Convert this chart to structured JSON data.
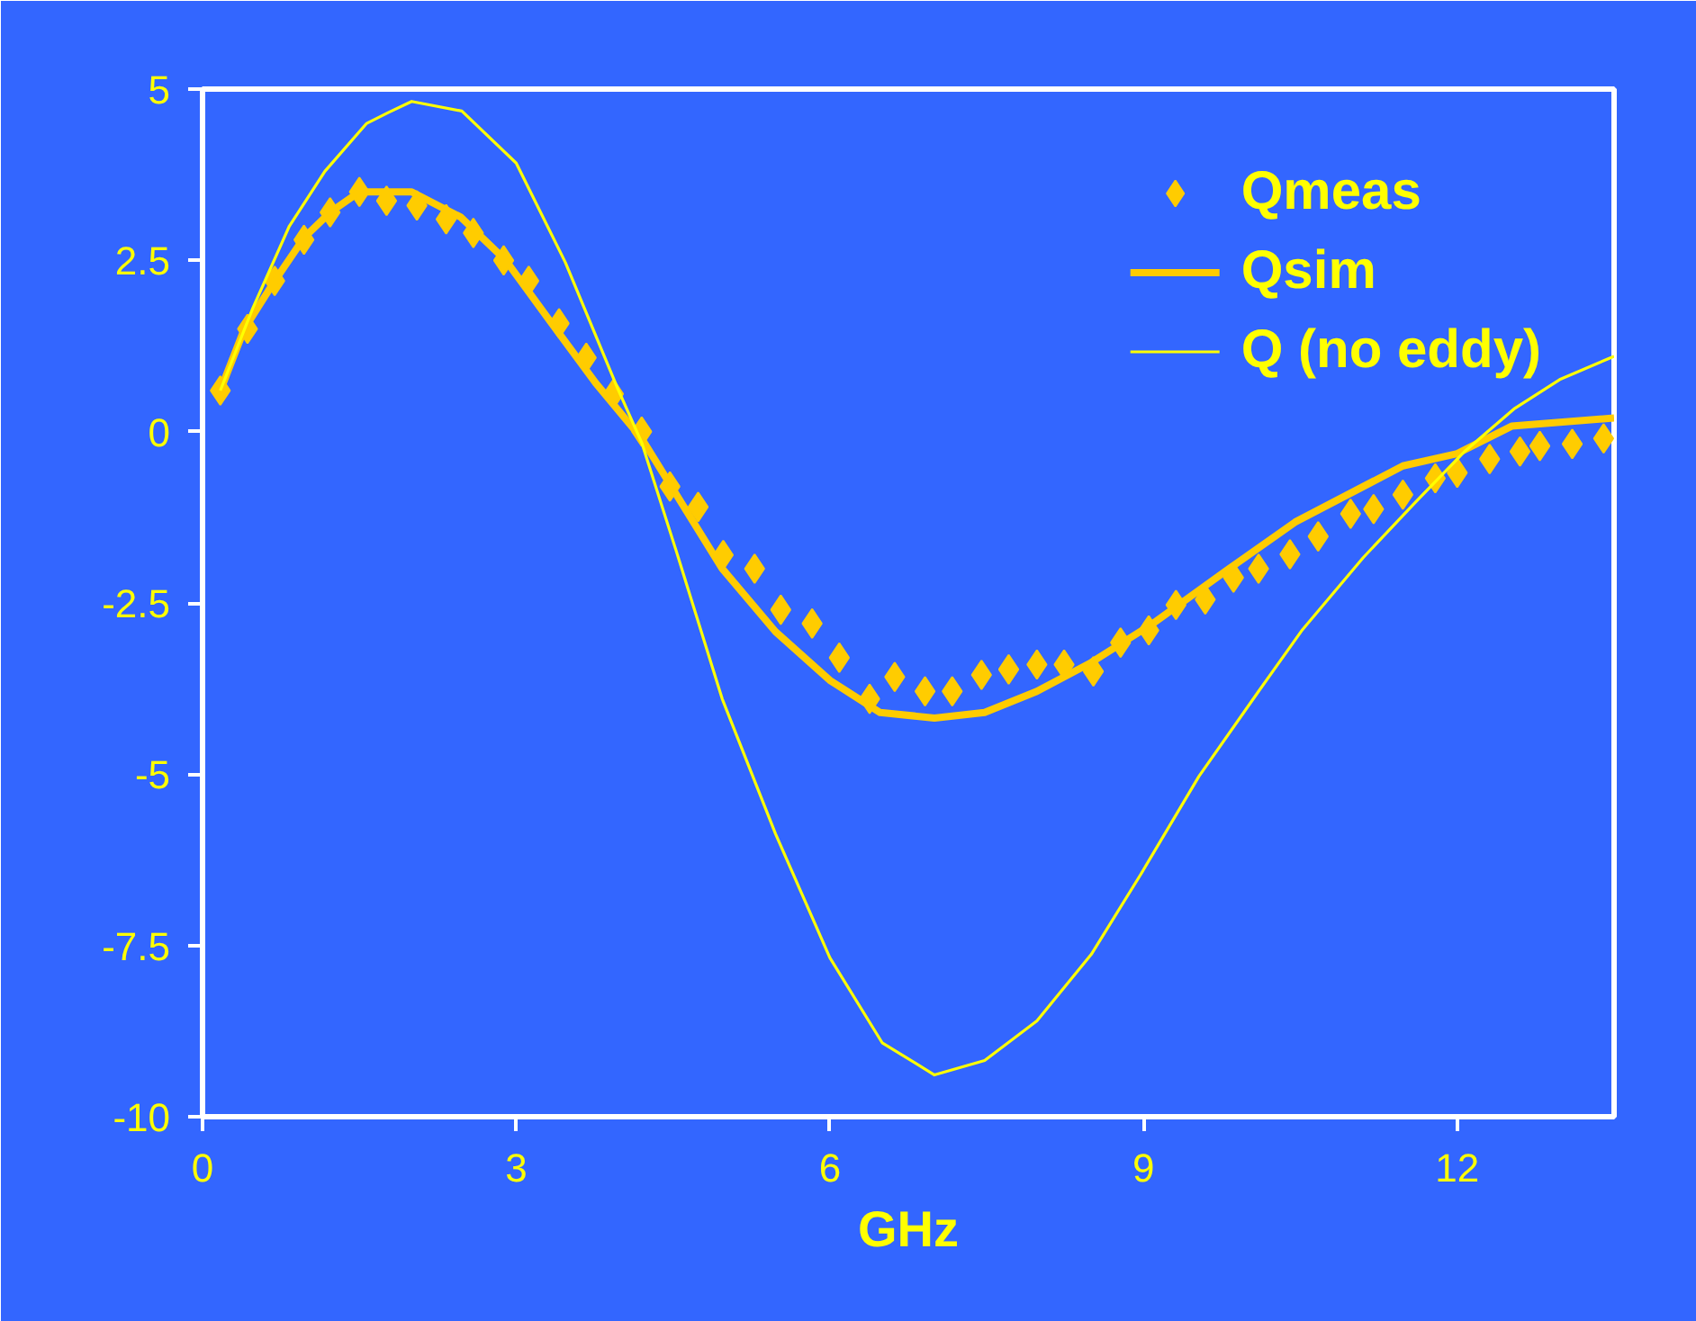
{
  "chart_data": {
    "type": "line",
    "xlabel": "GHz",
    "xlim": [
      0,
      13.5
    ],
    "xticks": [
      0,
      3,
      6,
      9,
      12
    ],
    "ylim": [
      -10,
      5
    ],
    "yticks": [
      5,
      2.5,
      0,
      -2.5,
      -5,
      -7.5,
      -10
    ],
    "grid": false,
    "legend": "top right",
    "series": [
      {
        "name": "Qmeas",
        "type": "scatter",
        "marker": "diamond",
        "color": "#ffcc00",
        "x": [
          0.17,
          0.43,
          0.69,
          0.97,
          1.22,
          1.5,
          1.76,
          2.05,
          2.33,
          2.59,
          2.88,
          3.12,
          3.41,
          3.67,
          3.93,
          4.2,
          4.47,
          4.74,
          4.98,
          5.28,
          5.53,
          5.83,
          6.09,
          6.38,
          6.62,
          6.91,
          7.17,
          7.45,
          7.71,
          7.98,
          8.24,
          8.52,
          8.78,
          9.05,
          9.31,
          9.59,
          9.86,
          10.1,
          10.4,
          10.67,
          10.98,
          11.2,
          11.48,
          11.79,
          12.0,
          12.31,
          12.6,
          12.79,
          13.1,
          13.4
        ],
        "values": [
          0.6,
          1.5,
          2.2,
          2.8,
          3.2,
          3.5,
          3.37,
          3.3,
          3.1,
          2.9,
          2.5,
          2.2,
          1.58,
          1.08,
          0.55,
          0.0,
          -0.8,
          -1.1,
          -1.8,
          -2.0,
          -2.6,
          -2.8,
          -3.3,
          -3.9,
          -3.58,
          -3.79,
          -3.79,
          -3.55,
          -3.47,
          -3.4,
          -3.4,
          -3.5,
          -3.08,
          -2.9,
          -2.53,
          -2.45,
          -2.13,
          -2.0,
          -1.79,
          -1.53,
          -1.2,
          -1.13,
          -0.92,
          -0.68,
          -0.6,
          -0.4,
          -0.29,
          -0.21,
          -0.18,
          -0.1
        ]
      },
      {
        "name": "Qsim",
        "line_style": "solid",
        "color": "#ffcc00",
        "x": [
          0.17,
          0.4,
          0.69,
          0.97,
          1.22,
          1.5,
          2.0,
          2.47,
          2.9,
          3.33,
          3.76,
          4.2,
          4.97,
          5.48,
          6.0,
          6.48,
          7.0,
          7.48,
          7.98,
          8.5,
          9.1,
          9.79,
          10.45,
          11.48,
          12.0,
          12.52,
          13.5
        ],
        "values": [
          0.6,
          1.5,
          2.2,
          2.83,
          3.2,
          3.5,
          3.5,
          3.13,
          2.5,
          1.6,
          0.71,
          -0.1,
          -2.0,
          -2.92,
          -3.63,
          -4.1,
          -4.18,
          -4.1,
          -3.79,
          -3.37,
          -2.79,
          -2.03,
          -1.32,
          -0.5,
          -0.32,
          0.08,
          0.2
        ]
      },
      {
        "name": "Q (no eddy)",
        "line_style": "solid",
        "color": "#ffff00",
        "x": [
          0.17,
          0.48,
          0.83,
          1.17,
          1.57,
          1.78,
          2.0,
          2.48,
          3.0,
          3.47,
          3.97,
          4.2,
          4.53,
          4.97,
          5.48,
          6.0,
          6.5,
          7.0,
          7.48,
          7.98,
          8.5,
          8.97,
          9.53,
          10.1,
          10.52,
          11.1,
          11.6,
          12.07,
          12.55,
          12.98,
          13.5
        ],
        "values": [
          0.6,
          1.8,
          3.0,
          3.8,
          4.5,
          4.66,
          4.82,
          4.68,
          3.92,
          2.47,
          0.63,
          -0.16,
          -1.74,
          -3.9,
          -5.87,
          -7.68,
          -8.92,
          -9.39,
          -9.18,
          -8.6,
          -7.63,
          -6.47,
          -5.03,
          -3.79,
          -2.89,
          -1.84,
          -1.03,
          -0.29,
          0.34,
          0.76,
          1.1
        ]
      }
    ]
  }
}
